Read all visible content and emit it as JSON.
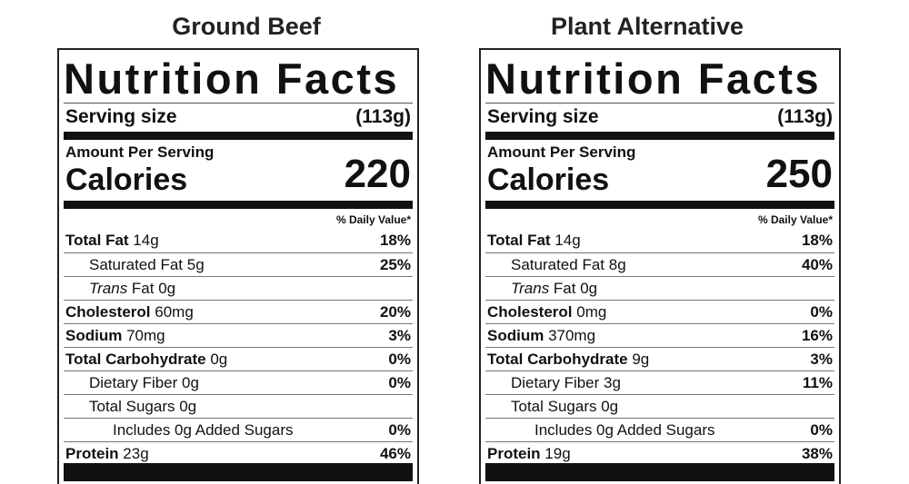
{
  "panels": [
    {
      "title": "Ground Beef",
      "heading": "Nutrition Facts",
      "serving_label": "Serving size",
      "serving_value": "(113g)",
      "amount_per": "Amount Per Serving",
      "calories_label": "Calories",
      "calories_value": "220",
      "dv_header": "% Daily Value*",
      "rows": [
        {
          "bold": "Total Fat",
          "amount": " 14g",
          "pct": "18%"
        },
        {
          "prefix": "Saturated Fat",
          "amount": " 5g",
          "pct": "25%"
        },
        {
          "italic": "Trans",
          "amount": " Fat 0g",
          "pct": ""
        },
        {
          "bold": "Cholesterol",
          "amount": " 60mg",
          "pct": "20%"
        },
        {
          "bold": "Sodium",
          "amount": " 70mg",
          "pct": "3%"
        },
        {
          "bold": "Total Carbohydrate",
          "amount": " 0g",
          "pct": "0%"
        },
        {
          "prefix": "Dietary Fiber",
          "amount": " 0g",
          "pct": "0%"
        },
        {
          "prefix": "Total Sugars",
          "amount": " 0g",
          "pct": ""
        },
        {
          "prefix": "Includes 0g Added Sugars",
          "amount": "",
          "pct": "0%"
        },
        {
          "bold": "Protein",
          "amount": " 23g",
          "pct": "46%"
        }
      ]
    },
    {
      "title": "Plant Alternative",
      "heading": "Nutrition Facts",
      "serving_label": "Serving size",
      "serving_value": "(113g)",
      "amount_per": "Amount Per Serving",
      "calories_label": "Calories",
      "calories_value": "250",
      "dv_header": "% Daily Value*",
      "rows": [
        {
          "bold": "Total Fat",
          "amount": " 14g",
          "pct": "18%"
        },
        {
          "prefix": "Saturated Fat",
          "amount": " 8g",
          "pct": "40%"
        },
        {
          "italic": "Trans",
          "amount": " Fat 0g",
          "pct": ""
        },
        {
          "bold": "Cholesterol",
          "amount": " 0mg",
          "pct": "0%"
        },
        {
          "bold": "Sodium",
          "amount": " 370mg",
          "pct": "16%"
        },
        {
          "bold": "Total Carbohydrate",
          "amount": " 9g",
          "pct": "3%"
        },
        {
          "prefix": "Dietary Fiber",
          "amount": " 3g",
          "pct": "11%"
        },
        {
          "prefix": "Total Sugars",
          "amount": " 0g",
          "pct": ""
        },
        {
          "prefix": "Includes 0g Added Sugars",
          "amount": "",
          "pct": "0%"
        },
        {
          "bold": "Protein",
          "amount": " 19g",
          "pct": "38%"
        }
      ]
    }
  ]
}
